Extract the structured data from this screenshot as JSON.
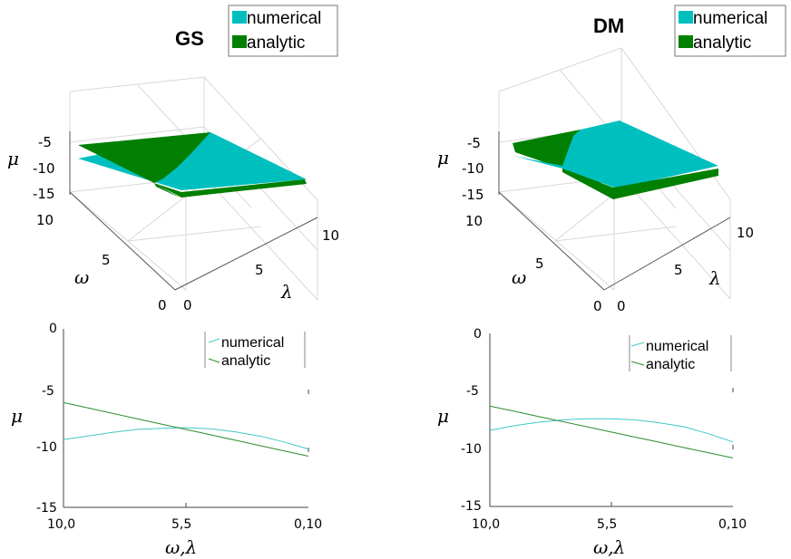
{
  "colors": {
    "numerical": "#00bfbf",
    "analytic": "#007f00",
    "analytic_line": "#2e8b2e",
    "numerical_line": "#3fc8c8"
  },
  "legend": {
    "numerical": "numerical",
    "analytic": "analytic"
  },
  "chart_data": [
    {
      "id": "gs_surface",
      "type": "surface",
      "title": "GS",
      "zlabel": "μ",
      "ylabel": "ω",
      "xlabel": "λ",
      "z_ticks": [
        "-5",
        "-10",
        "-15"
      ],
      "omega_ticks": [
        "10",
        "5",
        "0"
      ],
      "lambda_ticks": [
        "0",
        "5",
        "10"
      ],
      "legend": [
        "numerical",
        "analytic"
      ]
    },
    {
      "id": "dm_surface",
      "type": "surface",
      "title": "DM",
      "zlabel": "μ",
      "ylabel": "ω",
      "xlabel": "λ",
      "z_ticks": [
        "-5",
        "-10",
        "-15"
      ],
      "omega_ticks": [
        "10",
        "5",
        "0"
      ],
      "lambda_ticks": [
        "0",
        "5",
        "10"
      ],
      "legend": [
        "numerical",
        "analytic"
      ]
    },
    {
      "id": "gs_line",
      "type": "line",
      "xlabel": "ω,λ",
      "ylabel": "μ",
      "x_tick_labels": [
        "10,0",
        "5,5",
        "0,10"
      ],
      "y_tick_labels": [
        "0",
        "-5",
        "-10",
        "-15"
      ],
      "ylim": [
        -15,
        0
      ],
      "x": [
        0,
        1,
        2,
        3,
        4,
        5,
        6,
        7,
        8,
        9,
        10
      ],
      "series": [
        {
          "name": "numerical",
          "values": [
            -9.3,
            -9.0,
            -8.7,
            -8.45,
            -8.35,
            -8.3,
            -8.4,
            -8.65,
            -9.0,
            -9.5,
            -10.1
          ]
        },
        {
          "name": "analytic",
          "values": [
            -6.2,
            -6.65,
            -7.1,
            -7.55,
            -8.0,
            -8.45,
            -8.9,
            -9.35,
            -9.8,
            -10.25,
            -10.7
          ]
        }
      ]
    },
    {
      "id": "dm_line",
      "type": "line",
      "xlabel": "ω,λ",
      "ylabel": "μ",
      "x_tick_labels": [
        "10,0",
        "5,5",
        "0,10"
      ],
      "y_tick_labels": [
        "0",
        "-5",
        "-10",
        "-15"
      ],
      "ylim": [
        -15,
        0
      ],
      "x": [
        0,
        1,
        2,
        3,
        4,
        5,
        6,
        7,
        8,
        9,
        10
      ],
      "series": [
        {
          "name": "numerical",
          "values": [
            -8.4,
            -8.0,
            -7.7,
            -7.5,
            -7.4,
            -7.4,
            -7.5,
            -7.75,
            -8.1,
            -8.7,
            -9.4
          ]
        },
        {
          "name": "analytic",
          "values": [
            -6.3,
            -6.75,
            -7.2,
            -7.65,
            -8.1,
            -8.55,
            -9.0,
            -9.45,
            -9.9,
            -10.35,
            -10.8
          ]
        }
      ]
    }
  ]
}
